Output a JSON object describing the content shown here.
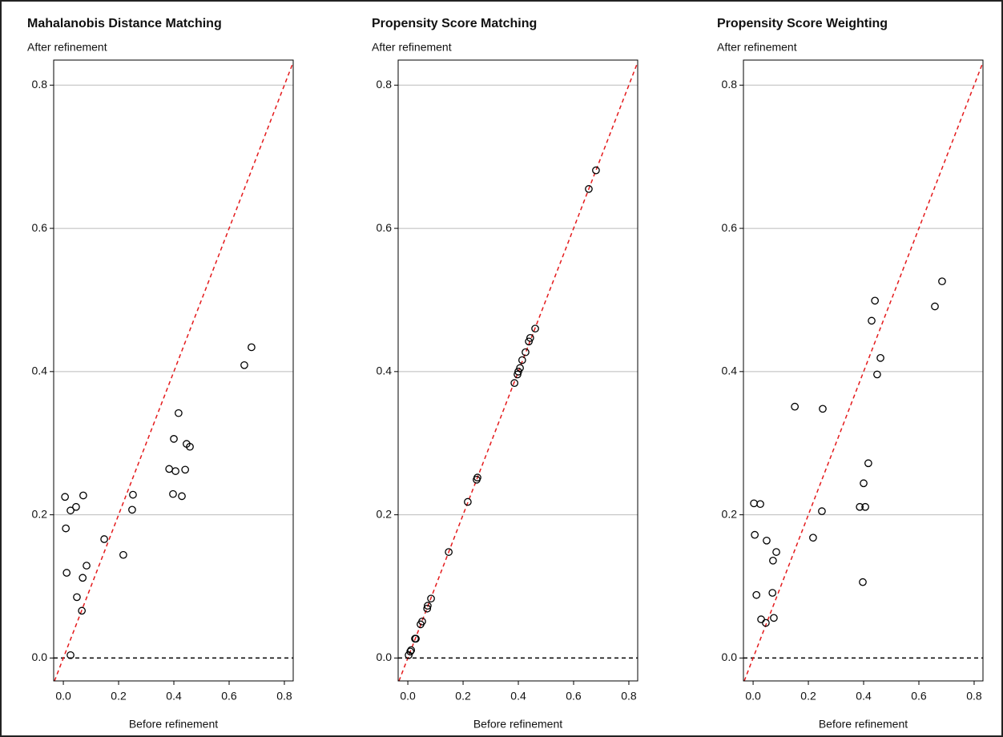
{
  "chart_data": [
    {
      "type": "scatter",
      "title": "Mahalanobis Distance Matching",
      "y_label": "After refinement",
      "x_label": "Before refinement",
      "x": [
        0.006,
        0.009,
        0.012,
        0.026,
        0.026,
        0.046,
        0.049,
        0.07,
        0.067,
        0.072,
        0.084,
        0.148,
        0.217,
        0.249,
        0.252,
        0.383,
        0.4,
        0.406,
        0.397,
        0.417,
        0.429,
        0.441,
        0.446,
        0.458,
        0.655,
        0.681
      ],
      "y": [
        0.225,
        0.181,
        0.119,
        0.004,
        0.206,
        0.211,
        0.085,
        0.112,
        0.066,
        0.227,
        0.129,
        0.166,
        0.144,
        0.207,
        0.228,
        0.264,
        0.306,
        0.261,
        0.229,
        0.342,
        0.226,
        0.263,
        0.299,
        0.295,
        0.409,
        0.434
      ],
      "xlim": [
        -0.035,
        0.832
      ],
      "ylim": [
        -0.032,
        0.835
      ],
      "xticks": [
        {
          "value": 0,
          "label": "0.0"
        },
        0.2,
        0.4,
        0.6,
        0.8
      ],
      "yticks": [
        {
          "value": 0,
          "label": "0.0"
        },
        0.2,
        0.4,
        0.6,
        0.8
      ],
      "grid": true,
      "color": "#000000",
      "reference_color": "#e41a1c"
    },
    {
      "type": "scatter",
      "title": "Propensity Score Matching",
      "y_label": "After refinement",
      "x_label": "Before refinement",
      "x": [
        0.003,
        0.009,
        0.012,
        0.026,
        0.029,
        0.046,
        0.052,
        0.07,
        0.072,
        0.084,
        0.148,
        0.217,
        0.249,
        0.252,
        0.386,
        0.397,
        0.4,
        0.406,
        0.414,
        0.426,
        0.438,
        0.443,
        0.461,
        0.655,
        0.681
      ],
      "y": [
        0.004,
        0.009,
        0.011,
        0.027,
        0.027,
        0.047,
        0.051,
        0.069,
        0.073,
        0.083,
        0.148,
        0.218,
        0.249,
        0.252,
        0.384,
        0.396,
        0.4,
        0.405,
        0.416,
        0.427,
        0.442,
        0.447,
        0.46,
        0.655,
        0.681
      ],
      "xlim": [
        -0.035,
        0.832
      ],
      "ylim": [
        -0.032,
        0.835
      ],
      "xticks": [
        {
          "value": 0,
          "label": "0.0"
        },
        0.2,
        0.4,
        0.6,
        0.8
      ],
      "yticks": [
        {
          "value": 0,
          "label": "0.0"
        },
        0.2,
        0.4,
        0.6,
        0.8
      ],
      "grid": true,
      "color": "#000000",
      "reference_color": "#e41a1c"
    },
    {
      "type": "scatter",
      "title": "Propensity Score Weighting",
      "y_label": "After refinement",
      "x_label": "Before refinement",
      "x": [
        0.003,
        0.006,
        0.012,
        0.026,
        0.029,
        0.046,
        0.049,
        0.07,
        0.072,
        0.075,
        0.084,
        0.151,
        0.217,
        0.249,
        0.252,
        0.386,
        0.397,
        0.4,
        0.406,
        0.417,
        0.429,
        0.441,
        0.449,
        0.461,
        0.658,
        0.684
      ],
      "y": [
        0.216,
        0.172,
        0.088,
        0.215,
        0.054,
        0.049,
        0.164,
        0.091,
        0.136,
        0.056,
        0.148,
        0.351,
        0.168,
        0.205,
        0.348,
        0.211,
        0.106,
        0.244,
        0.211,
        0.272,
        0.471,
        0.499,
        0.396,
        0.419,
        0.491,
        0.526
      ],
      "xlim": [
        -0.035,
        0.832
      ],
      "ylim": [
        -0.032,
        0.835
      ],
      "xticks": [
        {
          "value": 0,
          "label": "0.0"
        },
        0.2,
        0.4,
        0.6,
        0.8
      ],
      "yticks": [
        {
          "value": 0,
          "label": "0.0"
        },
        0.2,
        0.4,
        0.6,
        0.8
      ],
      "grid": true,
      "color": "#000000",
      "reference_color": "#e41a1c"
    }
  ]
}
